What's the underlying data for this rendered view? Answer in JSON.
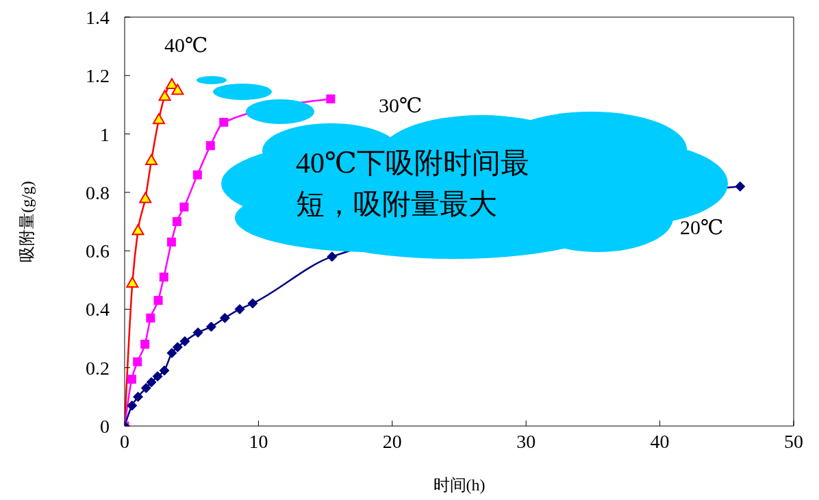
{
  "chart_data": {
    "type": "line",
    "xlabel": "时间(h)",
    "ylabel": "吸附量(g/g)",
    "xlim": [
      0,
      50
    ],
    "xticks": [
      0,
      10,
      20,
      30,
      40,
      50
    ],
    "ylim": [
      0,
      1.4
    ],
    "yticks": [
      0,
      0.2,
      0.4,
      0.6,
      0.8,
      1,
      1.2,
      1.4
    ],
    "series": [
      {
        "name": "40℃",
        "color": "#ff0000",
        "marker": "triangle",
        "x": [
          0,
          0.58,
          1.0,
          1.55,
          2.0,
          2.56,
          3.0,
          3.53,
          3.96
        ],
        "values": [
          0,
          0.49,
          0.67,
          0.78,
          0.91,
          1.05,
          1.13,
          1.17,
          1.15
        ]
      },
      {
        "name": "30℃",
        "color": "#ff00ff",
        "marker": "square",
        "x": [
          0,
          0.53,
          0.96,
          1.52,
          1.94,
          2.51,
          2.93,
          3.5,
          3.91,
          4.45,
          5.44,
          6.41,
          7.41,
          9.5,
          15.4
        ],
        "values": [
          0,
          0.16,
          0.22,
          0.28,
          0.37,
          0.43,
          0.51,
          0.63,
          0.7,
          0.75,
          0.86,
          0.96,
          1.04,
          null,
          1.12
        ]
      },
      {
        "name": "20℃",
        "color": "#000080",
        "marker": "diamond",
        "x": [
          0,
          0.55,
          1.0,
          1.6,
          2.0,
          2.46,
          2.97,
          3.53,
          3.96,
          4.5,
          5.48,
          6.47,
          7.49,
          8.6,
          9.57,
          15.5,
          46
        ],
        "values": [
          0,
          0.07,
          0.1,
          0.13,
          0.15,
          0.17,
          0.19,
          0.25,
          0.27,
          0.29,
          0.32,
          0.34,
          0.37,
          0.4,
          0.42,
          0.58,
          0.82
        ]
      }
    ],
    "annotations": [
      "40℃下吸附时间最短，吸附量最大"
    ]
  }
}
